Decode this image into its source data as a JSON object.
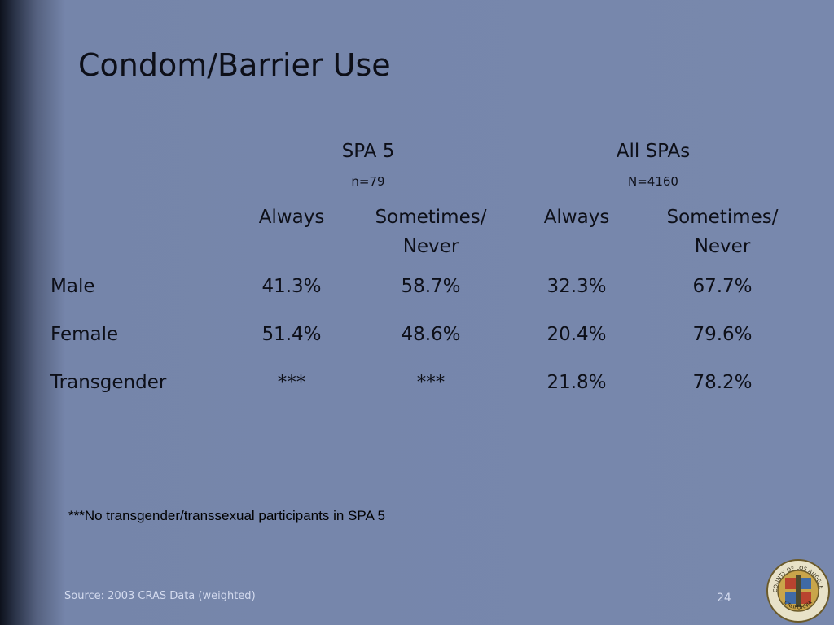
{
  "header": {
    "title": "Condom/Barrier Use"
  },
  "table": {
    "groups": [
      {
        "label": "SPA 5",
        "n": "n=79"
      },
      {
        "label": "All SPAs",
        "n": "N=4160"
      }
    ],
    "subheaders": [
      "Always",
      "Sometimes/\nNever",
      "Always",
      "Sometimes/\nNever"
    ],
    "rows": [
      [
        "Male",
        "41.3%",
        "58.7%",
        "32.3%",
        "67.7%"
      ],
      [
        "Female",
        "51.4%",
        "48.6%",
        "20.4%",
        "79.6%"
      ],
      [
        "Transgender",
        "***",
        "***",
        "21.8%",
        "78.2%"
      ]
    ]
  },
  "footnote": "***No transgender/transsexual participants in SPA 5",
  "footer": {
    "source": "Source: 2003 CRAS Data (weighted)",
    "page_number": "24"
  },
  "seal": {
    "top": "COUNTY OF LOS ANGELES",
    "bottom": "CALIFORNIA"
  }
}
